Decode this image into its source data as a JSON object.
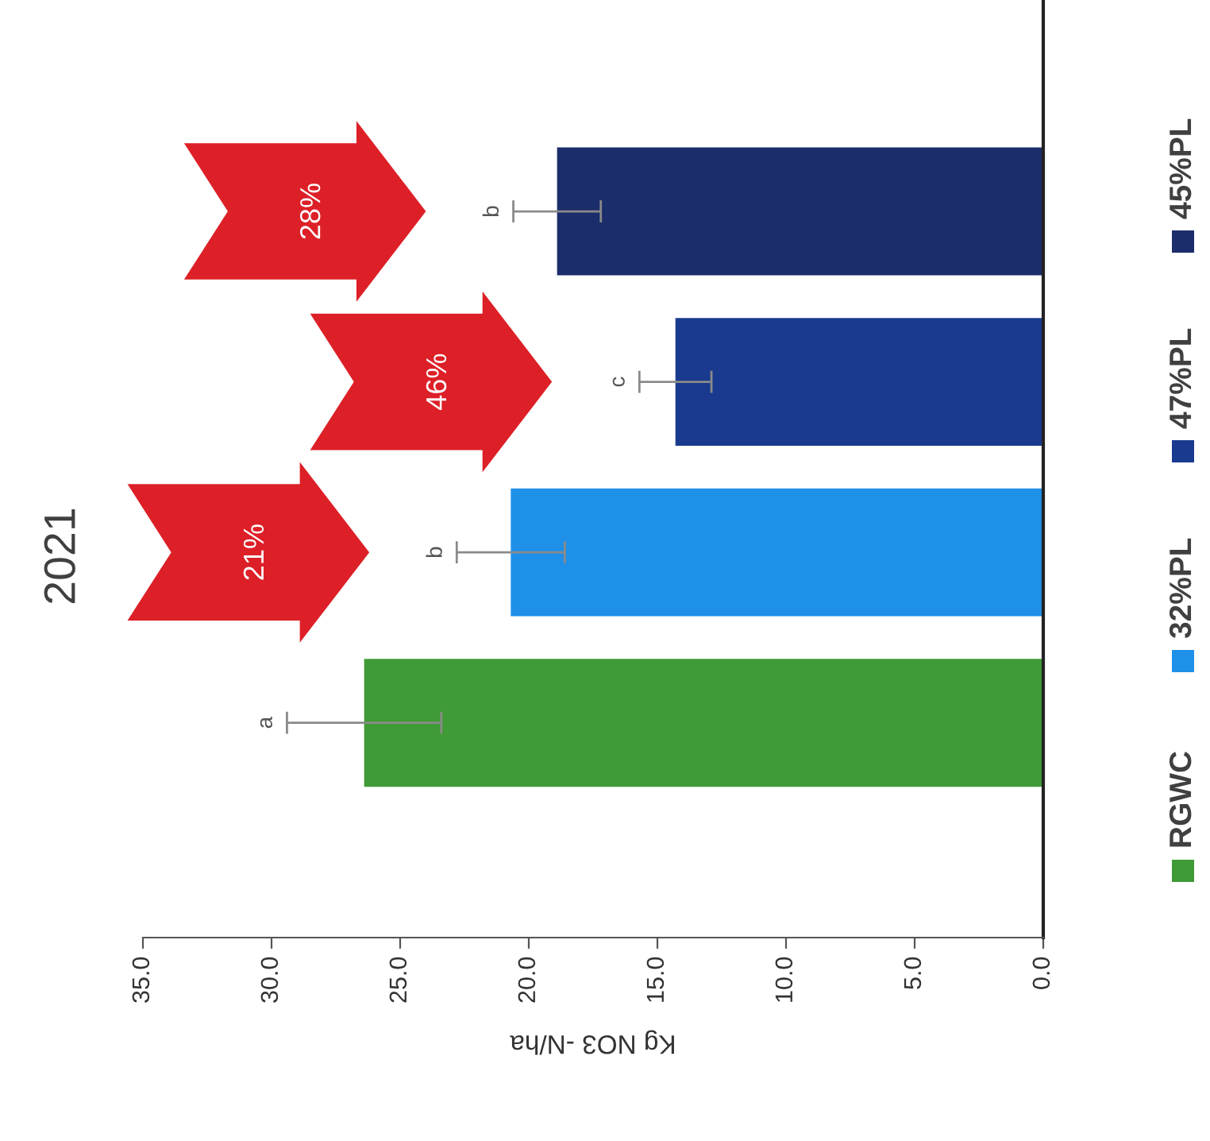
{
  "chart_data": {
    "type": "bar",
    "orientation": "horizontal",
    "title": "2021",
    "xlabel": "Kg NO3 -N/ha",
    "categories": [
      null,
      null,
      null,
      null
    ],
    "series": [
      {
        "name": "RGWC",
        "color": "#3f9b35",
        "values": [
          null,
          null,
          null,
          26.4
        ],
        "errors": [
          null,
          null,
          null,
          3.0
        ]
      },
      {
        "name": "32%PL",
        "color": "#1e90e8",
        "values": [
          null,
          null,
          20.7,
          null
        ],
        "errors": [
          null,
          null,
          2.1,
          null
        ]
      },
      {
        "name": "47%PL",
        "color": "#1a3a8f",
        "values": [
          null,
          14.3,
          null,
          null
        ],
        "errors": [
          null,
          1.4,
          null,
          null
        ]
      },
      {
        "name": "45%PL",
        "color": "#1c2d6b",
        "values": [
          18.9,
          null,
          null,
          null
        ],
        "errors": [
          1.7,
          null,
          null,
          null
        ]
      }
    ],
    "xlim": [
      35,
      0
    ],
    "xticks": [
      {
        "value": 35,
        "label": "35.0"
      },
      {
        "value": 30,
        "label": "30.0"
      },
      {
        "value": 25,
        "label": "25.0"
      },
      {
        "value": 20,
        "label": "20.0"
      },
      {
        "value": 15,
        "label": "15.0"
      },
      {
        "value": 10,
        "label": "10.0"
      },
      {
        "value": 5,
        "label": "5.0"
      },
      {
        "value": 0,
        "label": "0.0"
      }
    ],
    "annotations": [
      "b",
      "c",
      "b",
      "a",
      "28%",
      "46%",
      "21%"
    ],
    "grid": false,
    "legend": "right"
  }
}
